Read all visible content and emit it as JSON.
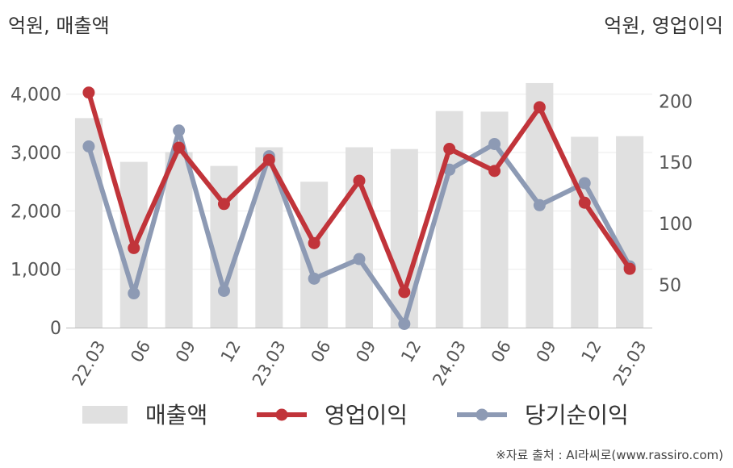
{
  "units": {
    "left": "억원, 매출액",
    "right": "억원, 영업이익"
  },
  "source": "※자료 출처 : AI라씨로(www.rassiro.com)",
  "colors": {
    "revenue": "#e0e0e0",
    "operating_profit": "#c1343a",
    "net_income": "#8d9ab4"
  },
  "chart_data": {
    "type": "bar",
    "categories": [
      "22.03",
      "06",
      "09",
      "12",
      "23.03",
      "06",
      "09",
      "12",
      "24.03",
      "06",
      "09",
      "12",
      "25.03"
    ],
    "y_left": {
      "ticks": [
        0,
        1000,
        2000,
        3000,
        4000
      ],
      "tick_labels": [
        "0",
        "1,000",
        "2,000",
        "3,000",
        "4,000"
      ],
      "ylim": [
        0,
        4300
      ]
    },
    "y_right": {
      "ticks": [
        50,
        100,
        150,
        200
      ],
      "tick_labels": [
        "50",
        "100",
        "150",
        "200"
      ],
      "ylim": [
        15,
        220
      ]
    },
    "series": [
      {
        "name": "매출액",
        "type": "bar",
        "axis": "left",
        "values": [
          3590,
          2840,
          3010,
          2770,
          3090,
          2500,
          3090,
          3060,
          3710,
          3700,
          4190,
          3270,
          3280
        ]
      },
      {
        "name": "영업이익",
        "type": "line",
        "axis": "right",
        "values": [
          207,
          80,
          162,
          116,
          152,
          84,
          135,
          44,
          161,
          143,
          195,
          117,
          63
        ]
      },
      {
        "name": "당기순이익",
        "type": "line",
        "axis": "right",
        "values": [
          163,
          43,
          176,
          45,
          155,
          55,
          71,
          18,
          144,
          165,
          115,
          133,
          65
        ]
      }
    ],
    "grid": true,
    "legend_position": "bottom"
  }
}
